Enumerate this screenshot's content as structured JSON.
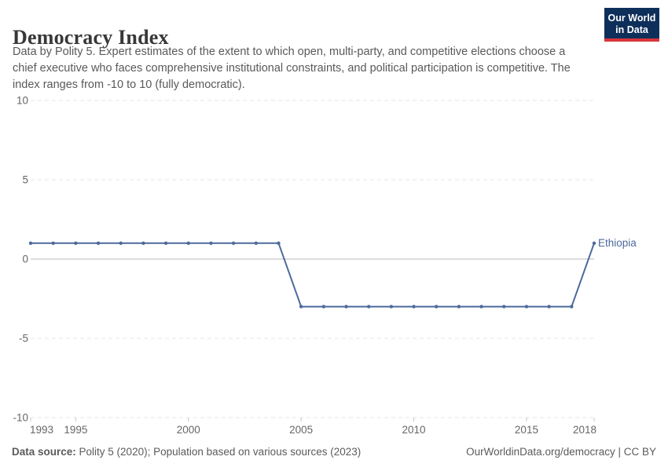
{
  "header": {
    "title": "Democracy Index",
    "subtitle_lines": [
      "Data by Polity 5. Expert estimates of the extent to which open, multi-party, and competitive elections choose a",
      "chief executive who faces comprehensive institutional constraints, and political participation is competitive. The",
      "index ranges from -10 to 10 (fully democratic)."
    ],
    "logo": {
      "line1": "Our World",
      "line2": "in Data"
    }
  },
  "chart_data": {
    "type": "line",
    "title": "Democracy Index",
    "x": [
      1993,
      1994,
      1995,
      1996,
      1997,
      1998,
      1999,
      2000,
      2001,
      2002,
      2003,
      2004,
      2005,
      2006,
      2007,
      2008,
      2009,
      2010,
      2011,
      2012,
      2013,
      2014,
      2015,
      2016,
      2017,
      2018
    ],
    "series": [
      {
        "name": "Ethiopia",
        "color": "#4c6a9c",
        "values": [
          1,
          1,
          1,
          1,
          1,
          1,
          1,
          1,
          1,
          1,
          1,
          1,
          -3,
          -3,
          -3,
          -3,
          -3,
          -3,
          -3,
          -3,
          -3,
          -3,
          -3,
          -3,
          -3,
          1
        ]
      }
    ],
    "xlabel": "",
    "ylabel": "",
    "ylim": [
      -10,
      10
    ],
    "yticks": [
      10,
      5,
      0,
      -5,
      -10
    ],
    "xticks": [
      1993,
      1995,
      2000,
      2005,
      2010,
      2015,
      2018
    ],
    "grid": "horizontal-dashed",
    "legend_position": "end-of-line-label",
    "marker": "dot"
  },
  "colors": {
    "line": "#4c6a9c",
    "gridline": "#e5e5e5",
    "zero_line": "#b8b8b8",
    "axis_text": "#666666",
    "tick_mark": "#c8c8c8",
    "logo_bg": "#0e2f5a",
    "logo_bar": "#d8353c"
  },
  "footer": {
    "source_label": "Data source:",
    "source_text": " Polity 5 (2020); Population based on various sources (2023)",
    "credit": "OurWorldinData.org/democracy | CC BY"
  }
}
